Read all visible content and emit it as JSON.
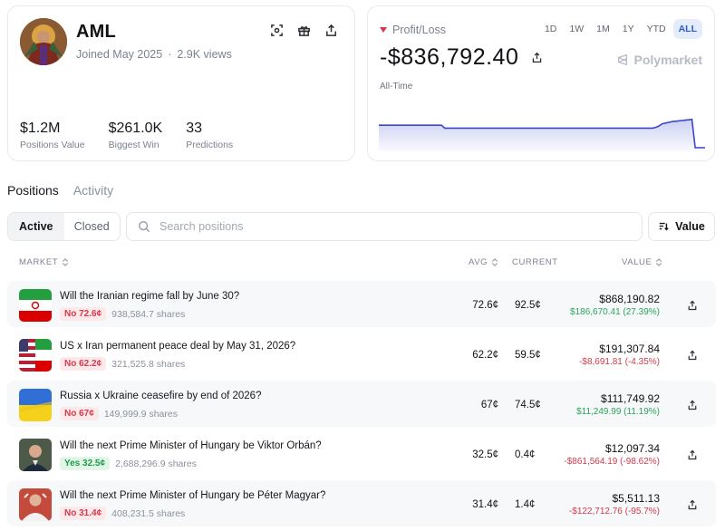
{
  "profile": {
    "name": "AML",
    "joined": "Joined May 2025",
    "views": "2.9K views",
    "actions": [
      "scan-icon",
      "gift-icon",
      "share-icon"
    ],
    "stats": [
      {
        "value": "$1.2M",
        "label": "Positions Value"
      },
      {
        "value": "$261.0K",
        "label": "Biggest Win"
      },
      {
        "value": "33",
        "label": "Predictions"
      }
    ]
  },
  "pnl": {
    "label": "Profit/Loss",
    "value": "-$836,792.40",
    "brand": "Polymarket",
    "period": "All-Time",
    "ranges": [
      "1D",
      "1W",
      "1M",
      "1Y",
      "YTD",
      "ALL"
    ],
    "active_range": "ALL",
    "line_color": "#3b47c6",
    "series": [
      0.62,
      0.62,
      0.62,
      0.62,
      0.62,
      0.62,
      0.62,
      0.62,
      0.62,
      0.62,
      0.62,
      0.62,
      0.62,
      0.62,
      0.62,
      0.62,
      0.62,
      0.62,
      0.62,
      0.62,
      0.54,
      0.54,
      0.54,
      0.54,
      0.54,
      0.54,
      0.54,
      0.54,
      0.54,
      0.54,
      0.54,
      0.54,
      0.54,
      0.54,
      0.54,
      0.54,
      0.54,
      0.54,
      0.54,
      0.54,
      0.54,
      0.54,
      0.54,
      0.54,
      0.54,
      0.54,
      0.54,
      0.54,
      0.54,
      0.54,
      0.54,
      0.54,
      0.54,
      0.54,
      0.54,
      0.54,
      0.54,
      0.54,
      0.54,
      0.54,
      0.54,
      0.54,
      0.54,
      0.54,
      0.54,
      0.54,
      0.54,
      0.54,
      0.54,
      0.54,
      0.54,
      0.54,
      0.54,
      0.54,
      0.54,
      0.54,
      0.54,
      0.54,
      0.54,
      0.54,
      0.54,
      0.54,
      0.54,
      0.54,
      0.56,
      0.6,
      0.66,
      0.68,
      0.7,
      0.72,
      0.73,
      0.74,
      0.75,
      0.76,
      0.77,
      0.78,
      0.0,
      0.0,
      0.0,
      0.0
    ]
  },
  "tabs": {
    "positions": "Positions",
    "activity": "Activity",
    "active_tab": "Positions"
  },
  "filters": {
    "active": "Active",
    "closed": "Closed",
    "search_placeholder": "Search positions",
    "sort_label": "Value"
  },
  "table": {
    "headers": {
      "market": "MARKET",
      "avg": "AVG",
      "current": "CURRENT",
      "value": "VALUE"
    },
    "rows": [
      {
        "title": "Will the Iranian regime fall by June 30?",
        "side": "No",
        "side_price": "72.6¢",
        "shares": "938,584.7 shares",
        "avg": "72.6¢",
        "current": "92.5¢",
        "value": "$868,190.82",
        "change": "$186,670.41 (27.39%)",
        "positive": true,
        "thumb": "iran-flag"
      },
      {
        "title": "US x Iran permanent peace deal by May 31, 2026?",
        "side": "No",
        "side_price": "62.2¢",
        "shares": "321,525.8 shares",
        "avg": "62.2¢",
        "current": "59.5¢",
        "value": "$191,307.84",
        "change": "-$8,691.81 (-4.35%)",
        "positive": false,
        "thumb": "us-iran-flags"
      },
      {
        "title": "Russia x Ukraine ceasefire by end of 2026?",
        "side": "No",
        "side_price": "67¢",
        "shares": "149,999.9 shares",
        "avg": "67¢",
        "current": "74.5¢",
        "value": "$111,749.92",
        "change": "$11,249.99 (11.19%)",
        "positive": true,
        "thumb": "ukraine-flag"
      },
      {
        "title": "Will the next Prime Minister of Hungary be Viktor Orbán?",
        "side": "Yes",
        "side_price": "32.5¢",
        "shares": "2,688,296.9 shares",
        "avg": "32.5¢",
        "current": "0.4¢",
        "value": "$12,097.34",
        "change": "-$861,564.19 (-98.62%)",
        "positive": false,
        "thumb": "portrait-orban"
      },
      {
        "title": "Will the next Prime Minister of Hungary be Péter Magyar?",
        "side": "No",
        "side_price": "31.4¢",
        "shares": "408,231.5 shares",
        "avg": "31.4¢",
        "current": "1.4¢",
        "value": "$5,511.13",
        "change": "-$122,712.76 (-95.7%)",
        "positive": false,
        "thumb": "portrait-magyar"
      }
    ]
  }
}
